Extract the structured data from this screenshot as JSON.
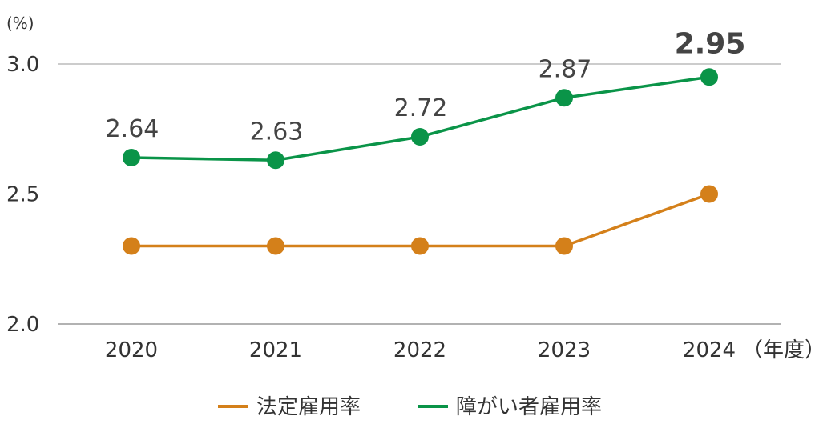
{
  "chart_data": {
    "type": "line",
    "y_unit": "(%)",
    "x_unit": "（年度）",
    "categories": [
      "2020",
      "2021",
      "2022",
      "2023",
      "2024"
    ],
    "ylim": [
      2.0,
      3.0
    ],
    "yticks": [
      "2.0",
      "2.5",
      "3.0"
    ],
    "grid": true,
    "legend_position": "bottom",
    "series": [
      {
        "name": "法定雇用率",
        "values": [
          2.3,
          2.3,
          2.3,
          2.3,
          2.5
        ],
        "color": "#D4801A"
      },
      {
        "name": "障がい者雇用率",
        "values": [
          2.64,
          2.63,
          2.72,
          2.87,
          2.95
        ],
        "color": "#0A9448",
        "data_labels": [
          "2.64",
          "2.63",
          "2.72",
          "2.87",
          "2.95"
        ]
      }
    ]
  }
}
